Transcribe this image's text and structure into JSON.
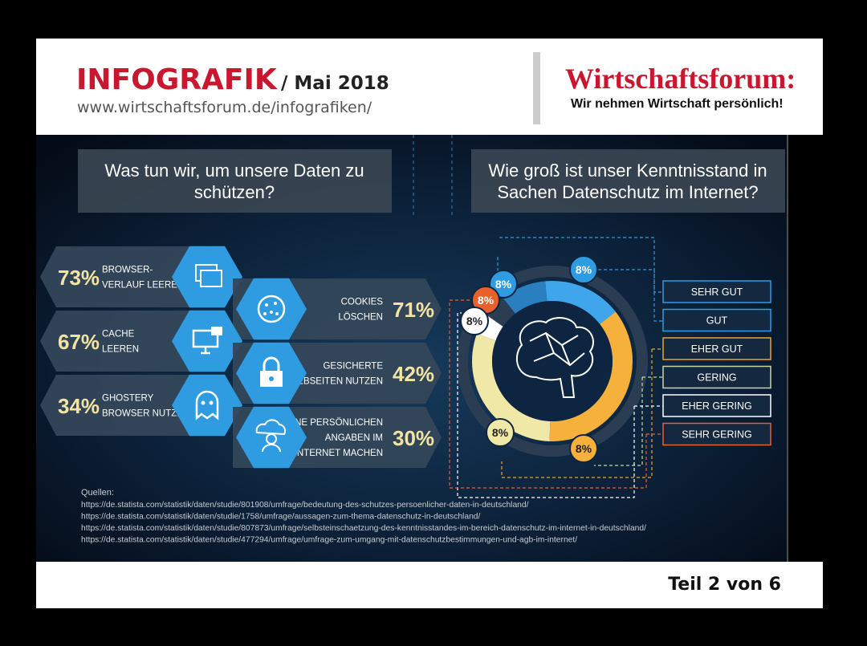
{
  "header": {
    "title": "INFOGRAFIK",
    "date": "/ Mai 2018",
    "url": "www.wirtschaftsforum.de/infografiken/",
    "brand": "Wirtschaftsforum:",
    "tagline": "Wir nehmen Wirtschaft persönlich!"
  },
  "left": {
    "heading": [
      "Was tun wir, um unsere Daten zu",
      "schützen?"
    ],
    "items": [
      {
        "percent": "73%",
        "label": [
          "BROWSER-",
          "VERLAUF LEEREN"
        ]
      },
      {
        "percent": "71%",
        "label": [
          "COOKIES",
          "LÖSCHEN"
        ]
      },
      {
        "percent": "67%",
        "label": [
          "CACHE",
          "LEEREN"
        ]
      },
      {
        "percent": "42%",
        "label": [
          "GESICHERTE",
          "WEBSEITEN NUTZEN"
        ]
      },
      {
        "percent": "34%",
        "label": [
          "GHOSTERY",
          "BROWSER NUTZEN"
        ]
      },
      {
        "percent": "30%",
        "label": [
          "KEINE PERSÖNLICHEN",
          "ANGABEN IM",
          "INTERNET MACHEN"
        ]
      }
    ]
  },
  "right": {
    "heading": [
      "Wie groß ist unser Kenntnisstand in",
      "Sachen Datenschutz im Internet?"
    ],
    "donut_labels": [
      "8%",
      "8%",
      "8%",
      "8%",
      "8%",
      "8%"
    ],
    "legend": [
      "SEHR GUT",
      "GUT",
      "EHER GUT",
      "GERING",
      "EHER GERING",
      "SEHR GERING"
    ]
  },
  "sources": {
    "title": "Quellen:",
    "links": [
      "https://de.statista.com/statistik/daten/studie/801908/umfrage/bedeutung-des-schutzes-persoenlicher-daten-in-deutschland/",
      "https://de.statista.com/statistik/daten/studie/1758/umfrage/aussagen-zum-thema-datenschutz-in-deutschland/",
      "https://de.statista.com/statistik/daten/studie/807873/umfrage/selbsteinschaetzung-des-kenntnisstandes-im-bereich-datenschutz-im-internet-in-deutschland/",
      "https://de.statista.com/statistik/daten/studie/477294/umfrage/umfrage-zum-umgang-mit-datenschutzbestimmungen-und-agb-im-internet/"
    ]
  },
  "footer": {
    "page": "Teil 2 von 6"
  }
}
